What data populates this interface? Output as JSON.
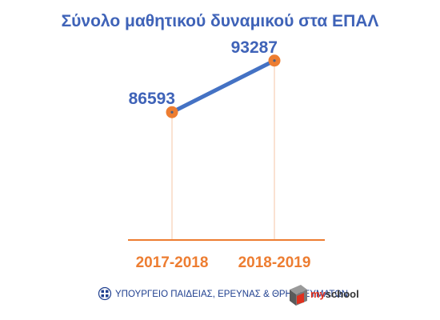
{
  "colors": {
    "title": "#3f63b8",
    "line": "#4472c4",
    "marker": "#ed7d31",
    "marker_center": "#4a5f86",
    "axis": "#ed7d31",
    "drop_line": "#f4c4a4",
    "tick_label": "#ed7d31",
    "value_label": "#3f63b8",
    "footer_text": "#1f3f8f",
    "brand_my": "#e0301e",
    "brand_school": "#333333"
  },
  "chart_data": {
    "type": "line",
    "title": "Σύνολο μαθητικού δυναμικού στα ΕΠΑΛ",
    "categories": [
      "2017-2018",
      "2018-2019"
    ],
    "series": [
      {
        "values": [
          86593,
          93287
        ]
      }
    ],
    "data_labels": [
      "86593",
      "93287"
    ],
    "ylim": [
      70000,
      97000
    ],
    "grid": false,
    "legend": "none"
  },
  "footer": {
    "ministry": "ΥΠΟΥΡΓΕΙΟ ΠΑΙΔΕΙΑΣ, ΕΡΕΥΝΑΣ & ΘΡΗΣΚΕΥΜΑΤΩΝ",
    "emblem_icon": "greek-emblem-icon",
    "brand_logo_icon": "myschool-logo-icon",
    "brand_my": "my",
    "brand_school": "school"
  }
}
